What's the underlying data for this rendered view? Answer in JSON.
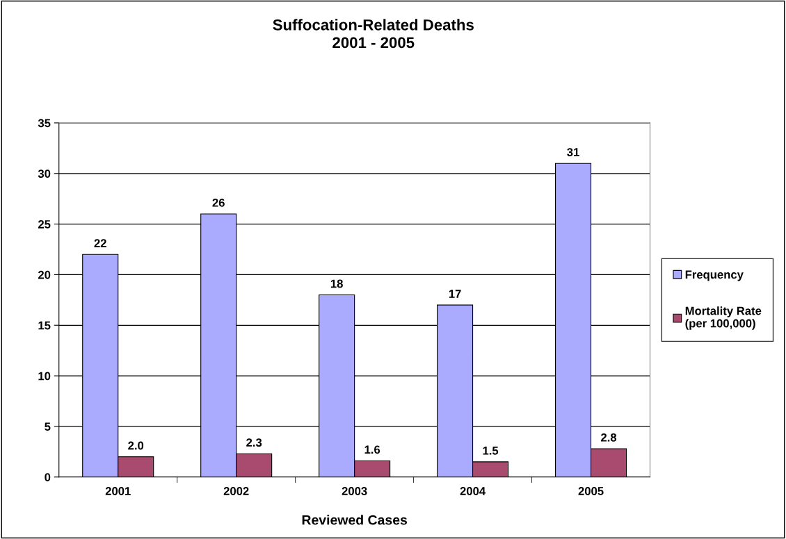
{
  "chart_data": {
    "type": "bar",
    "title": "Suffocation-Related Deaths\n2001 - 2005",
    "xlabel": "Reviewed Cases",
    "categories": [
      "2001",
      "2002",
      "2003",
      "2004",
      "2005"
    ],
    "series": [
      {
        "name": "Frequency",
        "color": "#aaaaff",
        "values": [
          22,
          26,
          18,
          17,
          31
        ],
        "value_labels": [
          "22",
          "26",
          "18",
          "17",
          "31"
        ]
      },
      {
        "name": "Mortality Rate\n(per 100,000)",
        "color": "#a94b6e",
        "values": [
          2.0,
          2.3,
          1.6,
          1.5,
          2.8
        ],
        "value_labels": [
          "2.0",
          "2.3",
          "1.6",
          "1.5",
          "2.8"
        ]
      }
    ],
    "ylim": [
      0,
      35
    ],
    "yticks": [
      0,
      5,
      10,
      15,
      20,
      25,
      30,
      35
    ],
    "grid": "y",
    "legend": "right"
  }
}
